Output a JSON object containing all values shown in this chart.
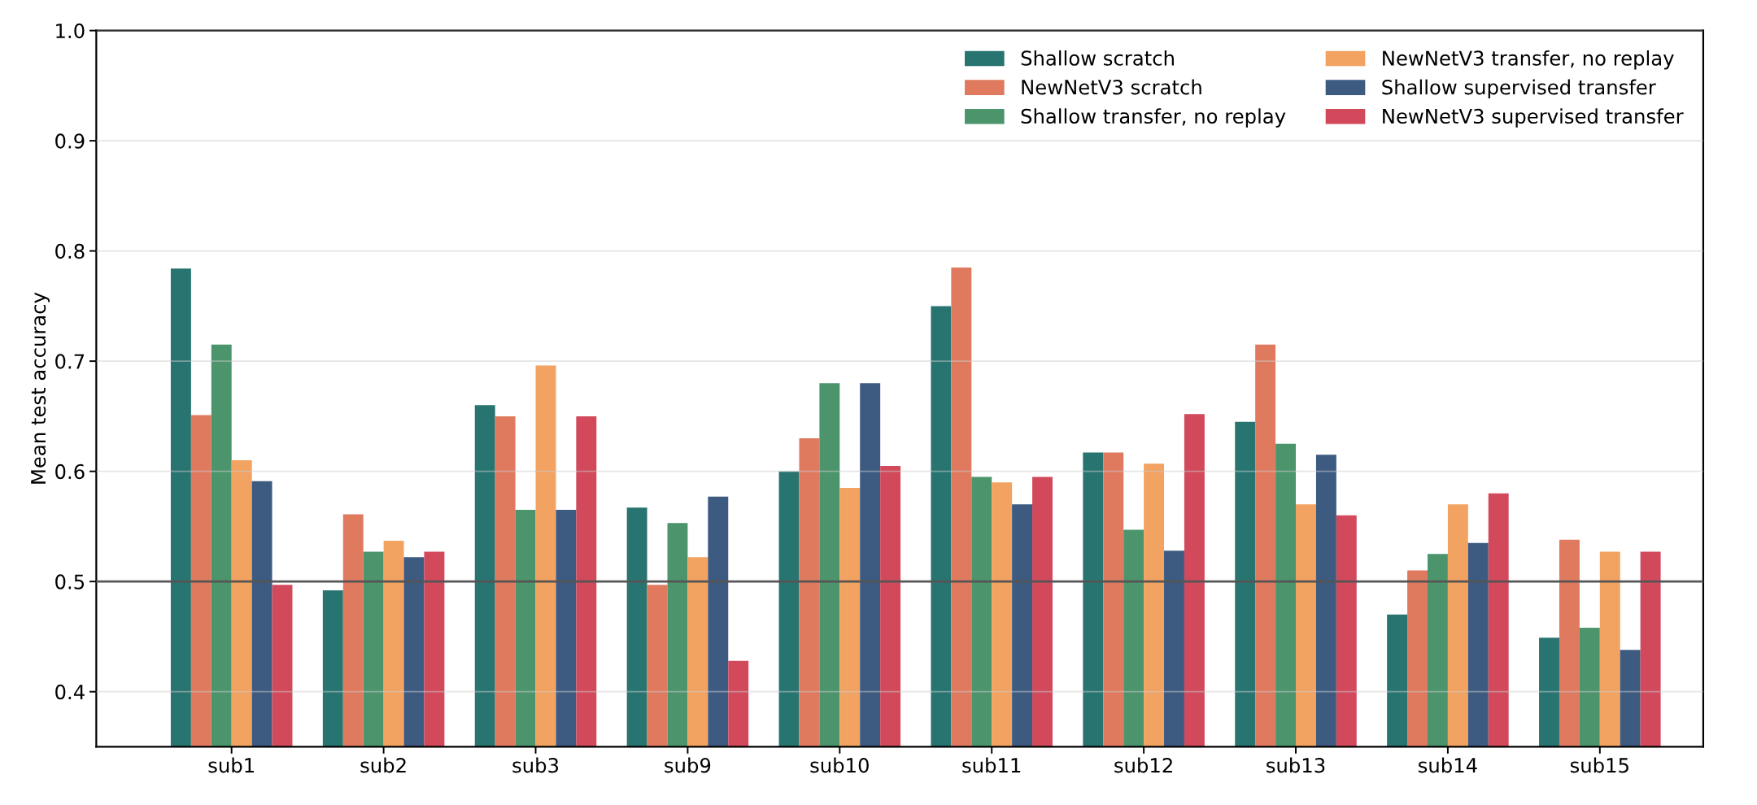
{
  "chart_data": {
    "type": "bar",
    "ylabel": "Mean test accuracy",
    "categories": [
      "sub1",
      "sub2",
      "sub3",
      "sub9",
      "sub10",
      "sub11",
      "sub12",
      "sub13",
      "sub14",
      "sub15"
    ],
    "series": [
      {
        "name": "Shallow scratch",
        "color": "#277470",
        "values": [
          0.784,
          0.492,
          0.66,
          0.567,
          0.6,
          0.75,
          0.617,
          0.645,
          0.47,
          0.449
        ]
      },
      {
        "name": "NewNetV3 scratch",
        "color": "#e07a5f",
        "values": [
          0.651,
          0.561,
          0.65,
          0.497,
          0.63,
          0.785,
          0.617,
          0.715,
          0.51,
          0.538
        ]
      },
      {
        "name": "Shallow transfer, no replay",
        "color": "#4c956c",
        "values": [
          0.715,
          0.527,
          0.565,
          0.553,
          0.68,
          0.595,
          0.547,
          0.625,
          0.525,
          0.458
        ]
      },
      {
        "name": "NewNetV3 transfer, no replay",
        "color": "#f2a261",
        "values": [
          0.61,
          0.537,
          0.696,
          0.522,
          0.585,
          0.59,
          0.607,
          0.57,
          0.57,
          0.527
        ]
      },
      {
        "name": "Shallow supervised transfer",
        "color": "#3d5a80",
        "values": [
          0.591,
          0.522,
          0.565,
          0.577,
          0.68,
          0.57,
          0.528,
          0.615,
          0.535,
          0.438
        ]
      },
      {
        "name": "NewNetV3 supervised transfer",
        "color": "#d1495b",
        "values": [
          0.497,
          0.527,
          0.65,
          0.428,
          0.605,
          0.595,
          0.652,
          0.56,
          0.58,
          0.527
        ]
      }
    ],
    "ylim": [
      0.35,
      1.0
    ],
    "yticks": [
      0.4,
      0.5,
      0.6,
      0.7,
      0.8,
      0.9,
      {
        "value": 1.0,
        "label": "1.0"
      }
    ],
    "ref_lines": [
      {
        "axis": "y",
        "value": 0.5,
        "color": "#555555"
      }
    ],
    "grid": "y",
    "legend": "top right"
  }
}
